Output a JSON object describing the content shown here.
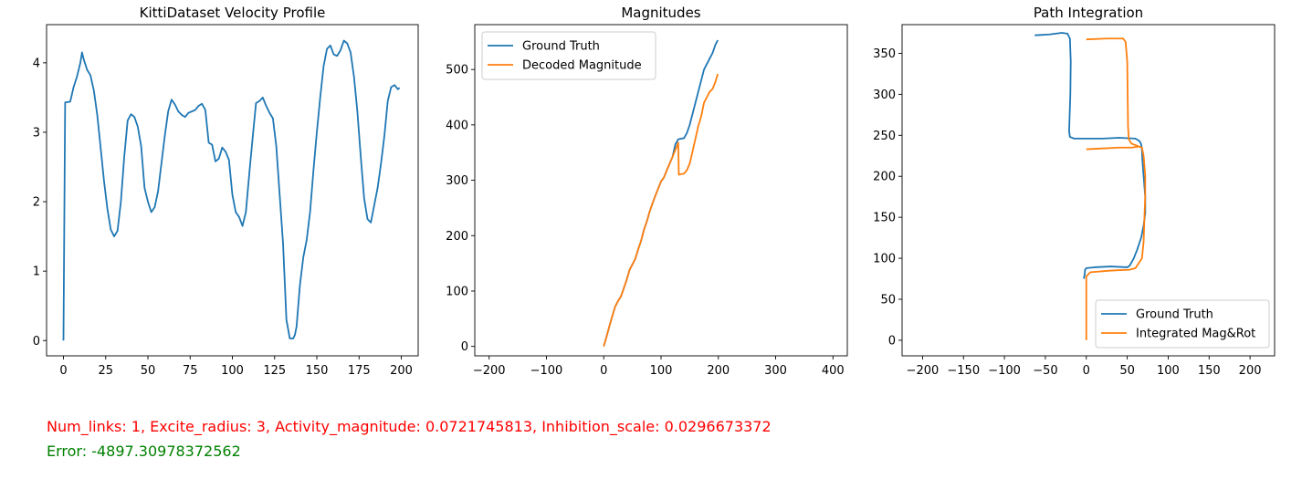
{
  "colors": {
    "series_blue": "#1f77b4",
    "series_orange": "#ff7f0e",
    "params_text": "#ff0000",
    "error_text": "#008000"
  },
  "footer": {
    "params": "Num_links: 1, Excite_radius: 3, Activity_magnitude: 0.0721745813, Inhibition_scale: 0.0296673372",
    "error": "Error: -4897.30978372562"
  },
  "chart_data": [
    {
      "type": "line",
      "title": "KittiDataset Velocity Profile",
      "xlabel": "",
      "ylabel": "",
      "xlim": [
        -10,
        210
      ],
      "ylim": [
        -0.22,
        4.55
      ],
      "xticks": [
        0,
        25,
        50,
        75,
        100,
        125,
        150,
        175,
        200
      ],
      "yticks": [
        0,
        1,
        2,
        3,
        4
      ],
      "grid": false,
      "legend": null,
      "series": [
        {
          "color": "#1f77b4",
          "x": [
            0,
            1,
            4,
            6,
            8,
            10,
            11,
            12,
            14,
            16,
            18,
            20,
            22,
            24,
            26,
            28,
            30,
            32,
            34,
            36,
            38,
            40,
            42,
            44,
            46,
            48,
            50,
            52,
            54,
            56,
            58,
            60,
            62,
            64,
            66,
            68,
            70,
            72,
            74,
            76,
            78,
            80,
            82,
            84,
            86,
            88,
            90,
            92,
            94,
            96,
            98,
            100,
            102,
            104,
            106,
            108,
            110,
            112,
            114,
            116,
            118,
            120,
            122,
            124,
            126,
            128,
            130,
            132,
            134,
            136,
            137,
            138,
            140,
            142,
            144,
            146,
            148,
            150,
            152,
            154,
            156,
            158,
            160,
            162,
            164,
            166,
            168,
            170,
            172,
            174,
            176,
            178,
            180,
            182,
            184,
            186,
            188,
            190,
            192,
            194,
            196,
            198,
            199
          ],
          "y": [
            0.0,
            3.43,
            3.44,
            3.65,
            3.8,
            4.0,
            4.15,
            4.05,
            3.9,
            3.82,
            3.6,
            3.25,
            2.78,
            2.3,
            1.9,
            1.6,
            1.5,
            1.58,
            2.0,
            2.65,
            3.17,
            3.26,
            3.22,
            3.08,
            2.8,
            2.2,
            2.0,
            1.85,
            1.92,
            2.15,
            2.55,
            2.95,
            3.3,
            3.47,
            3.4,
            3.3,
            3.25,
            3.22,
            3.28,
            3.3,
            3.32,
            3.38,
            3.41,
            3.32,
            2.85,
            2.82,
            2.58,
            2.62,
            2.78,
            2.72,
            2.6,
            2.1,
            1.85,
            1.78,
            1.65,
            1.85,
            2.4,
            2.92,
            3.42,
            3.45,
            3.5,
            3.38,
            3.28,
            3.2,
            2.8,
            2.1,
            1.4,
            0.3,
            0.03,
            0.03,
            0.08,
            0.2,
            0.8,
            1.2,
            1.45,
            1.85,
            2.45,
            3.0,
            3.5,
            3.95,
            4.2,
            4.25,
            4.12,
            4.1,
            4.18,
            4.32,
            4.28,
            4.15,
            3.8,
            3.3,
            2.65,
            2.05,
            1.75,
            1.7,
            1.95,
            2.2,
            2.55,
            2.95,
            3.45,
            3.65,
            3.68,
            3.62,
            3.64
          ]
        }
      ]
    },
    {
      "type": "line",
      "title": "Magnitudes",
      "xlabel": "",
      "ylabel": "",
      "xlim": [
        -225,
        425
      ],
      "ylim": [
        -17,
        581
      ],
      "xticks": [
        -200,
        -100,
        0,
        100,
        200,
        300,
        400
      ],
      "yticks": [
        0,
        100,
        200,
        300,
        400,
        500
      ],
      "grid": false,
      "legend": "top-left",
      "series": [
        {
          "name": "Ground Truth",
          "color": "#1f77b4",
          "x": [
            0,
            5,
            10,
            15,
            20,
            25,
            30,
            35,
            40,
            45,
            50,
            55,
            60,
            65,
            70,
            75,
            80,
            85,
            90,
            95,
            100,
            105,
            110,
            115,
            120,
            125,
            130,
            135,
            140,
            145,
            150,
            155,
            160,
            165,
            170,
            175,
            180,
            185,
            190,
            195,
            199
          ],
          "y": [
            0,
            18,
            37,
            55,
            72,
            82,
            90,
            105,
            120,
            138,
            148,
            158,
            175,
            190,
            210,
            225,
            243,
            258,
            272,
            285,
            298,
            305,
            318,
            330,
            342,
            365,
            374,
            375,
            376,
            385,
            400,
            420,
            440,
            460,
            480,
            500,
            510,
            520,
            530,
            545,
            553
          ]
        },
        {
          "name": "Decoded Magnitude",
          "color": "#ff7f0e",
          "x": [
            0,
            5,
            10,
            15,
            20,
            25,
            30,
            35,
            40,
            45,
            50,
            55,
            60,
            65,
            70,
            75,
            80,
            85,
            90,
            95,
            100,
            105,
            110,
            115,
            120,
            125,
            128,
            130,
            131,
            135,
            140,
            145,
            150,
            155,
            160,
            165,
            170,
            175,
            180,
            185,
            190,
            195,
            199
          ],
          "y": [
            0,
            18,
            37,
            55,
            72,
            82,
            90,
            105,
            120,
            138,
            148,
            158,
            175,
            190,
            210,
            225,
            243,
            258,
            272,
            285,
            298,
            305,
            318,
            330,
            342,
            355,
            362,
            368,
            310,
            311,
            312,
            318,
            330,
            352,
            375,
            398,
            415,
            440,
            450,
            460,
            465,
            478,
            492
          ]
        }
      ]
    },
    {
      "type": "line",
      "title": "Path Integration",
      "xlabel": "",
      "ylabel": "",
      "xlim": [
        -225,
        230
      ],
      "ylim": [
        -19,
        385
      ],
      "xticks": [
        -200,
        -150,
        -100,
        -50,
        0,
        50,
        100,
        150,
        200
      ],
      "yticks": [
        0,
        50,
        100,
        150,
        200,
        250,
        300,
        350
      ],
      "grid": false,
      "legend": "bottom-right",
      "series": [
        {
          "name": "Ground Truth",
          "color": "#1f77b4",
          "x": [
            -63,
            -45,
            -30,
            -23,
            -20,
            -19,
            -19.5,
            -20.5,
            -21,
            -20,
            -15,
            0,
            20,
            40,
            60,
            65,
            67,
            68,
            68.5,
            70,
            72,
            72,
            70,
            67,
            62,
            58,
            53,
            50,
            30,
            10,
            0,
            -1.5,
            -2,
            -2.5,
            -3
          ],
          "y": [
            372,
            373,
            375,
            374,
            368,
            340,
            300,
            270,
            255,
            248,
            246,
            246,
            246,
            247,
            246,
            243,
            239,
            232,
            220,
            200,
            175,
            155,
            140,
            125,
            110,
            100,
            91,
            89,
            90,
            89,
            88,
            86,
            80,
            78,
            75
          ]
        },
        {
          "name": "Integrated Mag&Rot",
          "color": "#ff7f0e",
          "x": [
            0,
            25,
            45,
            48,
            50,
            50.5,
            51,
            52,
            55,
            60,
            65,
            68,
            70,
            72,
            72,
            71,
            70,
            68,
            60,
            53,
            30,
            5,
            0,
            0,
            0
          ],
          "y": [
            367,
            368,
            368,
            364,
            340,
            300,
            260,
            245,
            240,
            238,
            236,
            235,
            225,
            200,
            175,
            150,
            120,
            100,
            88,
            86,
            85,
            83,
            78,
            40,
            0
          ]
        },
        {
          "name": "",
          "color": "#ff7f0e",
          "x": [
            0,
            20,
            40,
            55,
            63
          ],
          "y": [
            233,
            234,
            235,
            235,
            236
          ]
        }
      ]
    }
  ]
}
